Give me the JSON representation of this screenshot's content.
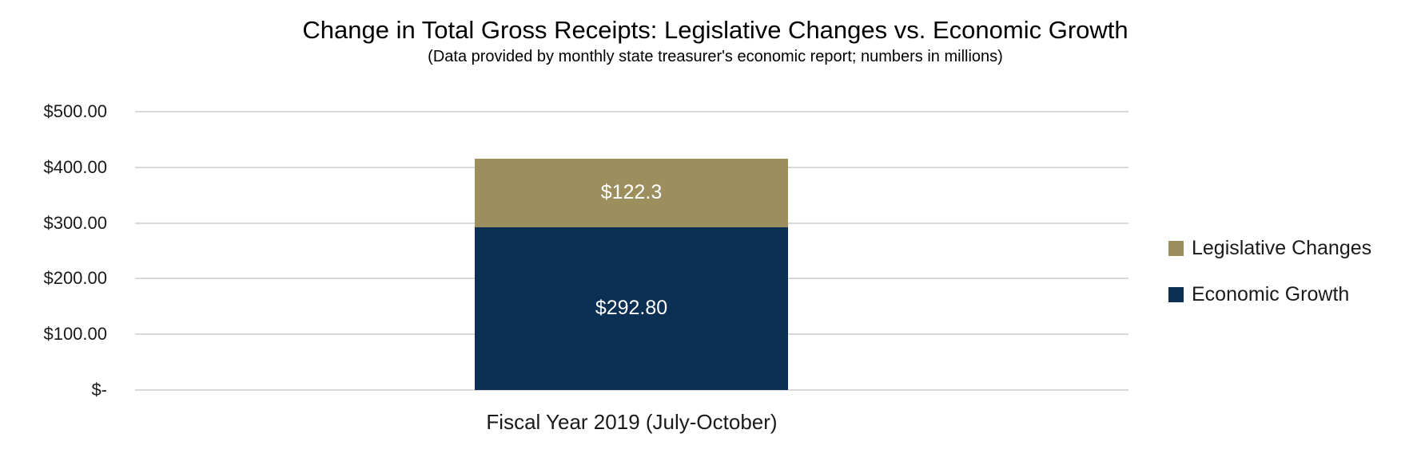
{
  "chart_data": {
    "type": "bar",
    "stacked": true,
    "title": "Change in Total Gross Receipts: Legislative Changes vs. Economic Growth",
    "subtitle": "(Data provided by monthly state treasurer's economic report; numbers in millions)",
    "categories": [
      "Fiscal Year 2019 (July-October)"
    ],
    "series": [
      {
        "name": "Economic Growth",
        "values": [
          292.8
        ],
        "data_labels": [
          "$292.80"
        ],
        "color": "#0b3054"
      },
      {
        "name": "Legislative Changes",
        "values": [
          122.3
        ],
        "data_labels": [
          "$122.3"
        ],
        "color": "#9d8e5e"
      }
    ],
    "xlabel": "",
    "ylabel": "",
    "ylim": [
      0,
      500
    ],
    "yticks": [
      {
        "value": 0,
        "label": "$-"
      },
      {
        "value": 100,
        "label": "$100.00"
      },
      {
        "value": 200,
        "label": "$200.00"
      },
      {
        "value": 300,
        "label": "$300.00"
      },
      {
        "value": 400,
        "label": "$400.00"
      },
      {
        "value": 500,
        "label": "$500.00"
      }
    ],
    "grid": true,
    "gridline_color": "#d9d9d9",
    "data_label_color": "#ffffff",
    "legend": {
      "position": "right",
      "entries": [
        "Legislative Changes",
        "Economic Growth"
      ]
    }
  }
}
